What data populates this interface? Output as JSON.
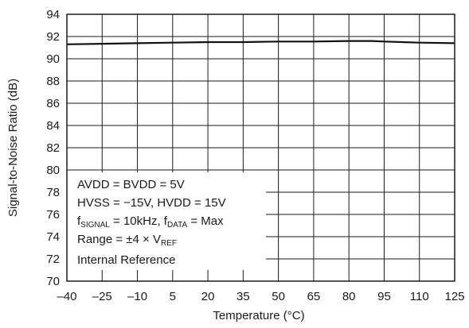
{
  "chart_data": {
    "type": "line",
    "title": "",
    "xlabel": "Temperature (°C)",
    "ylabel": "Signal-to-Noise Ratio (dB)",
    "xlim": [
      -40,
      125
    ],
    "ylim": [
      70,
      94
    ],
    "x_ticks": [
      -40,
      -25,
      -10,
      5,
      20,
      35,
      50,
      65,
      80,
      95,
      110,
      125
    ],
    "x_tick_labels": [
      "–40",
      "–25",
      "–10",
      "5",
      "20",
      "35",
      "50",
      "65",
      "80",
      "95",
      "110",
      "125"
    ],
    "y_ticks": [
      70,
      72,
      74,
      76,
      78,
      80,
      82,
      84,
      86,
      88,
      90,
      92,
      94
    ],
    "y_tick_labels": [
      "70",
      "72",
      "74",
      "76",
      "78",
      "80",
      "82",
      "84",
      "86",
      "88",
      "90",
      "92",
      "94"
    ],
    "grid": true,
    "series": [
      {
        "x": [
          -40,
          -25,
          -10,
          5,
          20,
          35,
          50,
          65,
          80,
          90,
          95,
          110,
          125
        ],
        "y": [
          91.3,
          91.35,
          91.4,
          91.45,
          91.5,
          91.5,
          91.55,
          91.55,
          91.6,
          91.6,
          91.55,
          91.45,
          91.4
        ]
      }
    ],
    "annotation": {
      "line1": "AVDD = BVDD = 5V",
      "line2": "HVSS = −15V, HVDD = 15V",
      "line3_a": "f",
      "line3_b": "SIGNAL",
      "line3_c": " = 10kHz, f",
      "line3_d": "DATA",
      "line3_e": " = Max",
      "line4_a": "Range = ±4 × V",
      "line4_b": "REF",
      "line5": "Internal Reference"
    },
    "colors": {
      "line": "#111111",
      "grid": "#1a1a1a"
    }
  }
}
